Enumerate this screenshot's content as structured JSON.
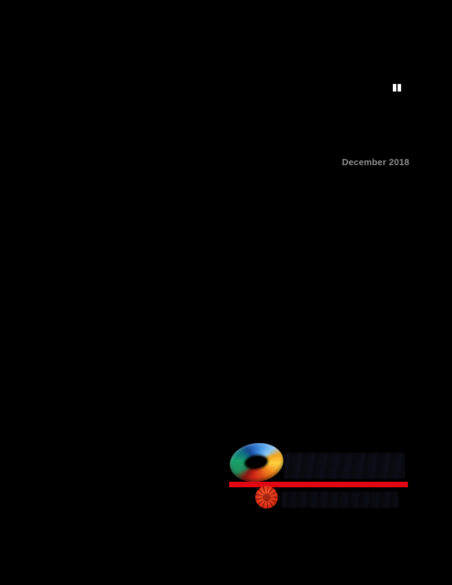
{
  "document": {
    "type": "report-cover-page",
    "date": "December 2018"
  },
  "decorations": {
    "corner_mark_icon": "small-white-tab-icon",
    "wordmark_legible": false,
    "tagline_legible": false
  },
  "logo": {
    "ring_icon": "multicolor-swirl-ring-icon",
    "medallion_icon": "red-flower-medallion-icon",
    "divider": "red-horizontal-bar"
  },
  "colors": {
    "background": "#000000",
    "dateText": "#8e8e8e",
    "accentRed": "#e30613",
    "ringBlue": "#2a6fc9",
    "ringLightBlue": "#8ec9f5",
    "ringGreen": "#18a06b",
    "ringTeal": "#127d7d",
    "ringYellow": "#ffd23f",
    "ringOrange": "#f2881c",
    "ringRed": "#d42a1a",
    "medallionRed": "#e03418",
    "smudge": "#0a0a10"
  }
}
